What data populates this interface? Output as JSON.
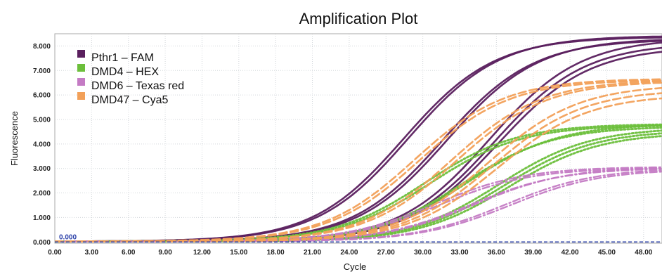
{
  "chart_data": {
    "type": "line",
    "title": "Amplification Plot",
    "xlabel": "Cycle",
    "ylabel": "Fluorescence",
    "xlim": [
      0,
      49.5
    ],
    "ylim": [
      -0.05,
      8.5
    ],
    "x_ticks": [
      "0.00",
      "3.00",
      "6.00",
      "9.00",
      "12.00",
      "15.00",
      "18.00",
      "21.00",
      "24.00",
      "27.00",
      "30.00",
      "33.00",
      "36.00",
      "39.00",
      "42.00",
      "45.00",
      "48.00"
    ],
    "y_ticks": [
      "0.000",
      "1.000",
      "2.000",
      "3.000",
      "4.000",
      "5.000",
      "6.000",
      "7.000",
      "8.000"
    ],
    "grid": true,
    "legend_position": "top-left",
    "threshold": {
      "value": 0.0,
      "label": "0.000",
      "color": "#2a3fa8"
    },
    "series": [
      {
        "name": "Pthr1 – FAM",
        "color": "#5a1f5e",
        "dash": "solid",
        "curves": [
          {
            "ct": 28.4,
            "plateau": 8.35
          },
          {
            "ct": 28.8,
            "plateau": 8.4
          },
          {
            "ct": 31.6,
            "plateau": 8.25
          },
          {
            "ct": 32.0,
            "plateau": 8.3
          },
          {
            "ct": 35.4,
            "plateau": 8.3
          },
          {
            "ct": 35.8,
            "plateau": 8.1
          },
          {
            "ct": 36.1,
            "plateau": 7.95
          }
        ]
      },
      {
        "name": "DMD4 – HEX",
        "color": "#6cbf3b",
        "dash": "dotted",
        "curves": [
          {
            "ct": 30.2,
            "plateau": 4.8
          },
          {
            "ct": 30.6,
            "plateau": 4.75
          },
          {
            "ct": 33.2,
            "plateau": 4.7
          },
          {
            "ct": 33.6,
            "plateau": 4.8
          },
          {
            "ct": 36.2,
            "plateau": 4.65
          },
          {
            "ct": 36.6,
            "plateau": 4.55
          },
          {
            "ct": 37.0,
            "plateau": 4.45
          }
        ]
      },
      {
        "name": "DMD6 – Texas red",
        "color": "#c47bc4",
        "dash": "dashdot",
        "curves": [
          {
            "ct": 31.0,
            "plateau": 3.05
          },
          {
            "ct": 31.4,
            "plateau": 3.0
          },
          {
            "ct": 33.9,
            "plateau": 3.0
          },
          {
            "ct": 34.3,
            "plateau": 3.05
          },
          {
            "ct": 36.7,
            "plateau": 3.0
          },
          {
            "ct": 37.1,
            "plateau": 2.95
          }
        ]
      },
      {
        "name": "DMD47 – Cya5",
        "color": "#f2a059",
        "dash": "dashed",
        "curves": [
          {
            "ct": 29.3,
            "plateau": 6.65
          },
          {
            "ct": 29.7,
            "plateau": 6.6
          },
          {
            "ct": 32.3,
            "plateau": 6.6
          },
          {
            "ct": 32.7,
            "plateau": 6.55
          },
          {
            "ct": 35.3,
            "plateau": 6.4
          },
          {
            "ct": 35.7,
            "plateau": 6.2
          },
          {
            "ct": 36.1,
            "plateau": 6.0
          }
        ]
      }
    ]
  }
}
